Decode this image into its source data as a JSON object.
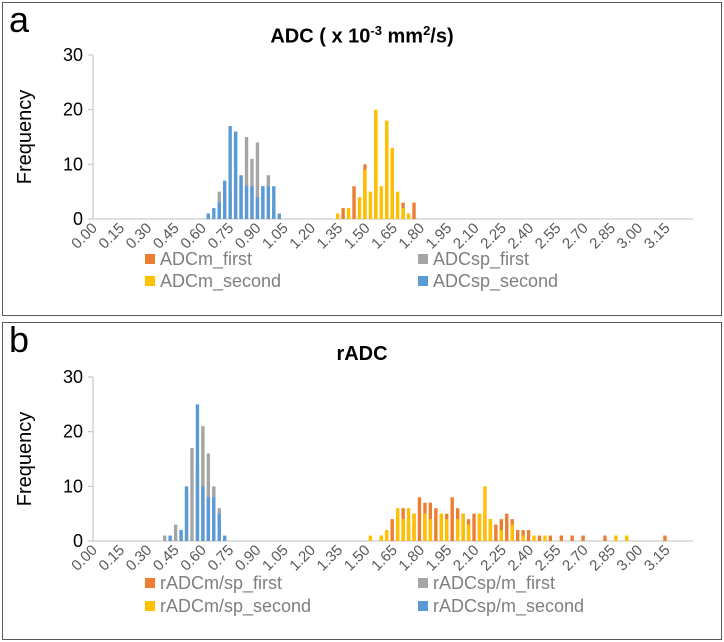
{
  "panels": [
    {
      "letter": "a",
      "title_main": "ADC ( x 10",
      "title_sup1": "-3",
      "title_mid": " mm",
      "title_sup2": "2",
      "title_end": "/s)"
    },
    {
      "letter": "b",
      "title": "rADC"
    }
  ],
  "chart_data": [
    {
      "type": "bar",
      "title": "ADC ( x 10-3 mm2/s)",
      "ylabel": "Frequency",
      "xlabel": "",
      "ylim": [
        0,
        30
      ],
      "yticks": [
        "0",
        "10",
        "20",
        "30"
      ],
      "xticks": [
        "0.00",
        "0.15",
        "0.30",
        "0.45",
        "0.60",
        "0.75",
        "0.90",
        "1.05",
        "1.20",
        "1.35",
        "1.50",
        "1.65",
        "1.80",
        "1.95",
        "2.10",
        "2.25",
        "2.40",
        "2.55",
        "2.70",
        "2.85",
        "3.00",
        "3.15"
      ],
      "bin_width": 0.03,
      "series": [
        {
          "name": "ADCm_first",
          "color": "#ed7d31",
          "points": [
            [
              1.38,
              2
            ],
            [
              1.44,
              6
            ],
            [
              1.5,
              10
            ],
            [
              1.56,
              19
            ],
            [
              1.62,
              16
            ],
            [
              1.65,
              13
            ],
            [
              1.71,
              3
            ],
            [
              1.77,
              3
            ]
          ]
        },
        {
          "name": "ADCsp_first",
          "color": "#a5a5a5",
          "points": [
            [
              0.63,
              1
            ],
            [
              0.69,
              5
            ],
            [
              0.75,
              5
            ],
            [
              0.78,
              16
            ],
            [
              0.81,
              7
            ],
            [
              0.84,
              15
            ],
            [
              0.87,
              11
            ],
            [
              0.9,
              14
            ],
            [
              0.93,
              6
            ],
            [
              0.96,
              8
            ],
            [
              0.99,
              3
            ]
          ]
        },
        {
          "name": "ADCm_second",
          "color": "#ffc000",
          "points": [
            [
              1.35,
              1
            ],
            [
              1.41,
              2
            ],
            [
              1.47,
              4
            ],
            [
              1.5,
              9
            ],
            [
              1.53,
              5
            ],
            [
              1.56,
              20
            ],
            [
              1.59,
              6
            ],
            [
              1.62,
              18
            ],
            [
              1.65,
              13
            ],
            [
              1.68,
              5
            ],
            [
              1.71,
              2
            ],
            [
              1.74,
              1
            ]
          ]
        },
        {
          "name": "ADCsp_second",
          "color": "#5b9bd5",
          "points": [
            [
              0.63,
              1
            ],
            [
              0.66,
              2
            ],
            [
              0.69,
              3
            ],
            [
              0.72,
              7
            ],
            [
              0.75,
              17
            ],
            [
              0.78,
              16
            ],
            [
              0.81,
              8
            ],
            [
              0.84,
              6
            ],
            [
              0.87,
              6
            ],
            [
              0.9,
              4
            ],
            [
              0.93,
              6
            ],
            [
              0.96,
              6
            ],
            [
              0.99,
              6
            ],
            [
              1.02,
              1
            ]
          ]
        }
      ]
    },
    {
      "type": "bar",
      "title": "rADC",
      "ylabel": "Frequency",
      "xlabel": "",
      "ylim": [
        0,
        30
      ],
      "yticks": [
        "0",
        "10",
        "20",
        "30"
      ],
      "xticks": [
        "0.00",
        "0.15",
        "0.30",
        "0.45",
        "0.60",
        "0.75",
        "0.90",
        "1.05",
        "1.20",
        "1.35",
        "1.50",
        "1.65",
        "1.80",
        "1.95",
        "2.10",
        "2.25",
        "2.40",
        "2.55",
        "2.70",
        "2.85",
        "3.00",
        "3.15"
      ],
      "bin_width": 0.03,
      "series": [
        {
          "name": "rADCm/sp_first",
          "color": "#ed7d31",
          "points": [
            [
              1.59,
              1
            ],
            [
              1.65,
              4
            ],
            [
              1.68,
              5
            ],
            [
              1.71,
              6
            ],
            [
              1.74,
              3
            ],
            [
              1.77,
              5
            ],
            [
              1.8,
              8
            ],
            [
              1.83,
              7
            ],
            [
              1.86,
              7
            ],
            [
              1.89,
              6
            ],
            [
              1.92,
              5
            ],
            [
              1.95,
              5
            ],
            [
              1.98,
              8
            ],
            [
              2.01,
              6
            ],
            [
              2.04,
              5
            ],
            [
              2.07,
              4
            ],
            [
              2.1,
              5
            ],
            [
              2.13,
              5
            ],
            [
              2.16,
              5
            ],
            [
              2.19,
              4
            ],
            [
              2.22,
              3
            ],
            [
              2.25,
              4
            ],
            [
              2.28,
              5
            ],
            [
              2.31,
              4
            ],
            [
              2.34,
              2
            ],
            [
              2.37,
              2
            ],
            [
              2.4,
              2
            ],
            [
              2.46,
              1
            ],
            [
              2.52,
              1
            ],
            [
              2.58,
              1
            ],
            [
              2.64,
              1
            ],
            [
              2.7,
              1
            ],
            [
              2.82,
              1
            ],
            [
              3.15,
              1
            ]
          ]
        },
        {
          "name": "rADCsp/m_first",
          "color": "#a5a5a5",
          "points": [
            [
              0.39,
              1
            ],
            [
              0.45,
              3
            ],
            [
              0.48,
              2
            ],
            [
              0.51,
              9
            ],
            [
              0.54,
              17
            ],
            [
              0.57,
              14
            ],
            [
              0.6,
              21
            ],
            [
              0.63,
              16
            ],
            [
              0.66,
              10
            ],
            [
              0.69,
              6
            ]
          ]
        },
        {
          "name": "rADCm/sp_second",
          "color": "#ffc000",
          "points": [
            [
              1.53,
              1
            ],
            [
              1.59,
              1
            ],
            [
              1.62,
              2
            ],
            [
              1.68,
              6
            ],
            [
              1.71,
              4
            ],
            [
              1.74,
              6
            ],
            [
              1.77,
              5
            ],
            [
              1.83,
              5
            ],
            [
              1.86,
              4
            ],
            [
              1.92,
              5
            ],
            [
              1.95,
              4
            ],
            [
              2.01,
              4
            ],
            [
              2.04,
              5
            ],
            [
              2.07,
              3
            ],
            [
              2.13,
              5
            ],
            [
              2.16,
              10
            ],
            [
              2.19,
              4
            ],
            [
              2.25,
              2
            ],
            [
              2.31,
              3
            ],
            [
              2.37,
              1
            ],
            [
              2.43,
              1
            ],
            [
              2.49,
              1
            ],
            [
              2.88,
              1
            ],
            [
              2.94,
              1
            ]
          ]
        },
        {
          "name": "rADCsp/m_second",
          "color": "#5b9bd5",
          "points": [
            [
              0.42,
              1
            ],
            [
              0.48,
              2
            ],
            [
              0.51,
              10
            ],
            [
              0.57,
              25
            ],
            [
              0.6,
              10
            ],
            [
              0.63,
              8
            ],
            [
              0.66,
              8
            ],
            [
              0.69,
              5
            ],
            [
              0.72,
              1
            ]
          ]
        }
      ]
    }
  ]
}
